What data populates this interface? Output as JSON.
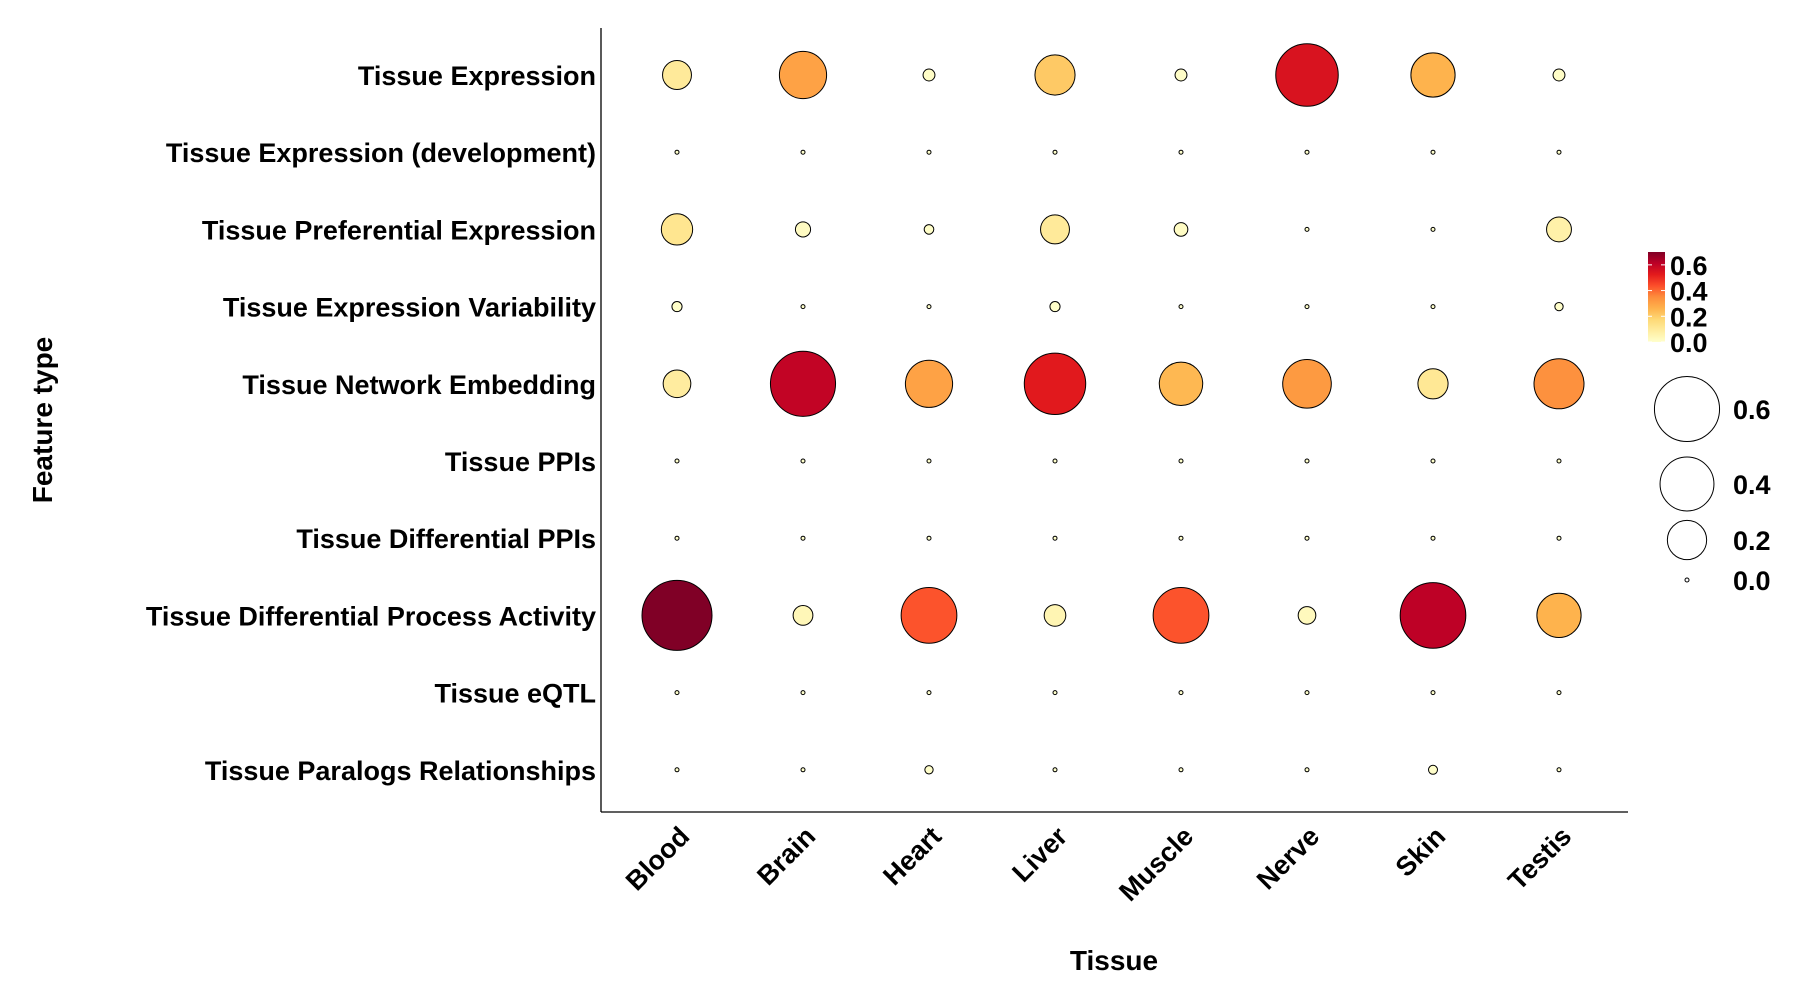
{
  "chart_data": {
    "type": "scatter",
    "subtype": "bubble-matrix",
    "xlabel": "Tissue",
    "ylabel": "Feature type",
    "x_categories": [
      "Blood",
      "Brain",
      "Heart",
      "Liver",
      "Muscle",
      "Nerve",
      "Skin",
      "Testis"
    ],
    "y_categories": [
      "Tissue Expression",
      "Tissue Expression (development)",
      "Tissue Preferential Expression",
      "Tissue Expression Variability",
      "Tissue Network Embedding",
      "Tissue PPIs",
      "Tissue Differential PPIs",
      "Tissue Differential Process Activity",
      "Tissue eQTL",
      "Tissue Paralogs Relationships"
    ],
    "values": [
      [
        0.1,
        0.3,
        0.01,
        0.21,
        0.01,
        0.55,
        0.26,
        0.01
      ],
      [
        0.0,
        0.0,
        0.0,
        0.0,
        0.0,
        0.0,
        0.0,
        0.0
      ],
      [
        0.12,
        0.02,
        0.005,
        0.1,
        0.015,
        0.0,
        0.0,
        0.07
      ],
      [
        0.006,
        0.0,
        0.0,
        0.006,
        0.0,
        0.0,
        0.0,
        0.003
      ],
      [
        0.09,
        0.6,
        0.3,
        0.53,
        0.25,
        0.32,
        0.11,
        0.34
      ],
      [
        0.0,
        0.0,
        0.0,
        0.0,
        0.0,
        0.0,
        0.0,
        0.0
      ],
      [
        0.0,
        0.0,
        0.0,
        0.0,
        0.0,
        0.0,
        0.0,
        0.0
      ],
      [
        0.7,
        0.04,
        0.43,
        0.05,
        0.43,
        0.03,
        0.61,
        0.26
      ],
      [
        0.0,
        0.0,
        0.0,
        0.0,
        0.0,
        0.0,
        0.0,
        0.0
      ],
      [
        0.0,
        0.0,
        0.003,
        0.0,
        0.0,
        0.0,
        0.004,
        0.0
      ]
    ],
    "color_legend": {
      "ticks": [
        "0.6",
        "0.4",
        "0.2",
        "0.0"
      ],
      "range": [
        0,
        0.7
      ]
    },
    "size_legend": {
      "ticks": [
        "0.6",
        "0.4",
        "0.2",
        "0.0"
      ],
      "values": [
        0.6,
        0.4,
        0.2,
        0.0
      ]
    },
    "colors": [
      "#FFFFCC",
      "#FFEDA0",
      "#FED976",
      "#FEB24C",
      "#FD8D3C",
      "#FC4E2A",
      "#E31A1C",
      "#BD0026",
      "#800026"
    ],
    "grid": false
  }
}
